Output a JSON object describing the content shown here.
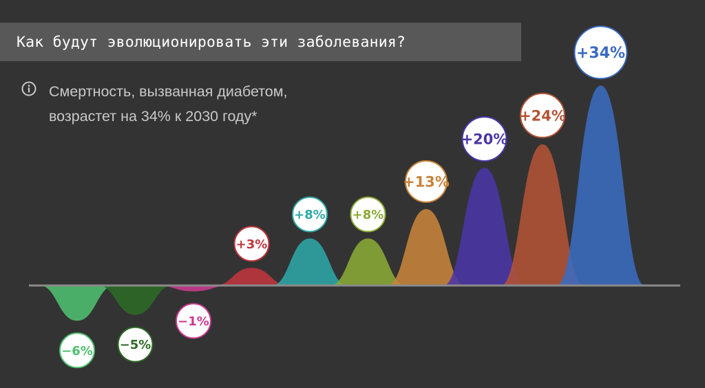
{
  "title": "Как будут эволюционировать эти заболевания?",
  "info": {
    "icon": "info-icon",
    "line1": "Смертность, вызванная диабетом,",
    "line2": "возрастет на 34% к 2030 году*"
  },
  "chart_data": {
    "type": "area",
    "title": "Как будут эволюционировать эти заболевания?",
    "xlabel": "",
    "ylabel": "",
    "series": [
      {
        "value": -6,
        "label": "−6%",
        "color": "#4fbf6f"
      },
      {
        "value": -5,
        "label": "−5%",
        "color": "#2e6a26"
      },
      {
        "value": -1,
        "label": "−1%",
        "color": "#c93a8f"
      },
      {
        "value": 3,
        "label": "+3%",
        "color": "#c0353d"
      },
      {
        "value": 8,
        "label": "+8%",
        "color": "#2ea6a6"
      },
      {
        "value": 8,
        "label": "+8%",
        "color": "#8aaa35"
      },
      {
        "value": 13,
        "label": "+13%",
        "color": "#c7843a"
      },
      {
        "value": 20,
        "label": "+20%",
        "color": "#4a36a6"
      },
      {
        "value": 24,
        "label": "+24%",
        "color": "#b35335"
      },
      {
        "value": 34,
        "label": "+34%",
        "color": "#3a6bbf"
      }
    ],
    "baseline": 0,
    "grid": false
  }
}
